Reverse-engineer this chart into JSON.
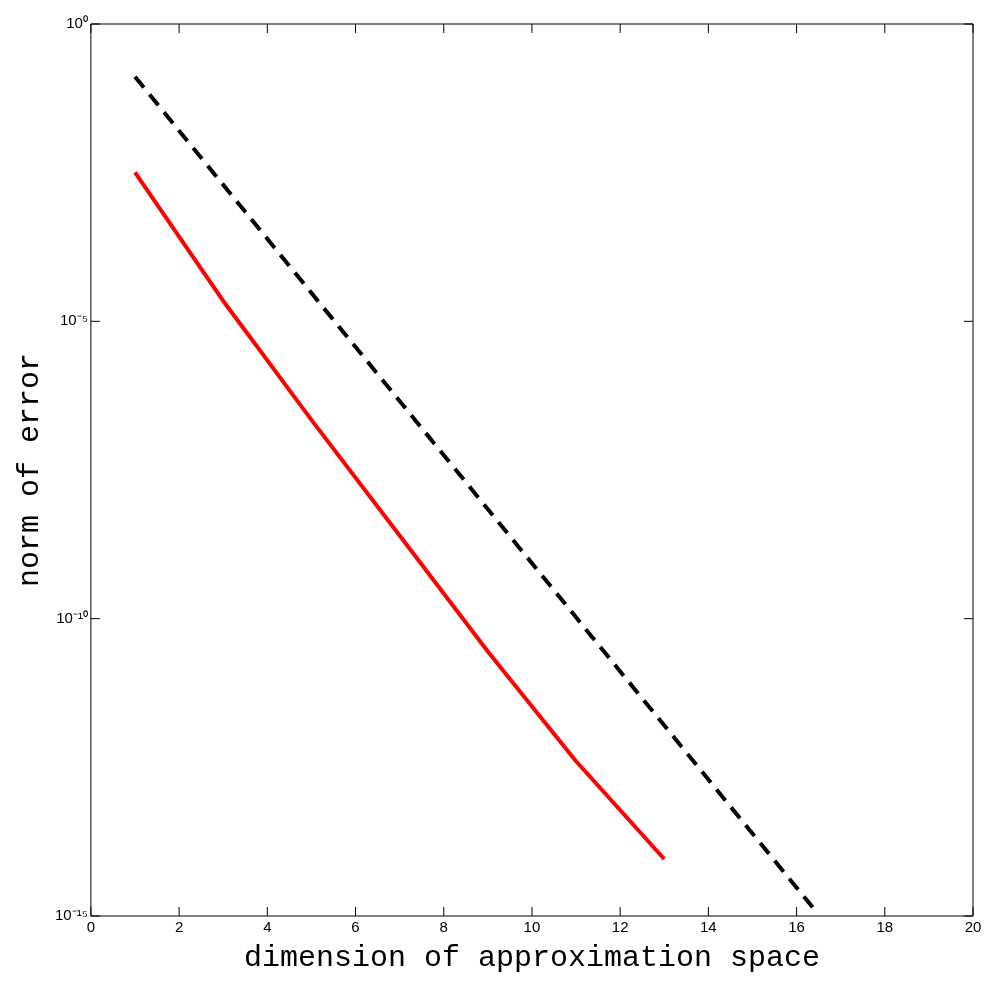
{
  "chart_data": {
    "type": "line",
    "xlabel": "dimension of approximation space",
    "ylabel": "norm of error",
    "log": "y",
    "grid": false,
    "legend": false,
    "marker": "none",
    "xlim": [
      0,
      20
    ],
    "xticks": [
      0,
      2,
      4,
      6,
      8,
      10,
      12,
      14,
      16,
      18,
      20
    ],
    "ylim": [
      1e-15,
      1
    ],
    "yticks": [
      {
        "value": 1e-15,
        "label": "10⁻¹⁵"
      },
      {
        "value": 1e-10,
        "label": "10⁻¹⁰"
      },
      {
        "value": 1e-05,
        "label": "10⁻⁵"
      },
      {
        "value": 1,
        "label": "10⁰"
      }
    ],
    "series": [
      {
        "color": "#ff0000",
        "line_style": "solid",
        "x": [
          1,
          3,
          5,
          7,
          9,
          11,
          13
        ],
        "values": [
          0.0032,
          2.2e-05,
          2.2e-07,
          2.5e-09,
          2.8e-11,
          4e-13,
          9.1e-15
        ]
      },
      {
        "color": "#000000",
        "line_style": "dashed",
        "x": [
          1,
          16.4
        ],
        "values": [
          0.13,
          1.3e-15
        ]
      }
    ]
  }
}
